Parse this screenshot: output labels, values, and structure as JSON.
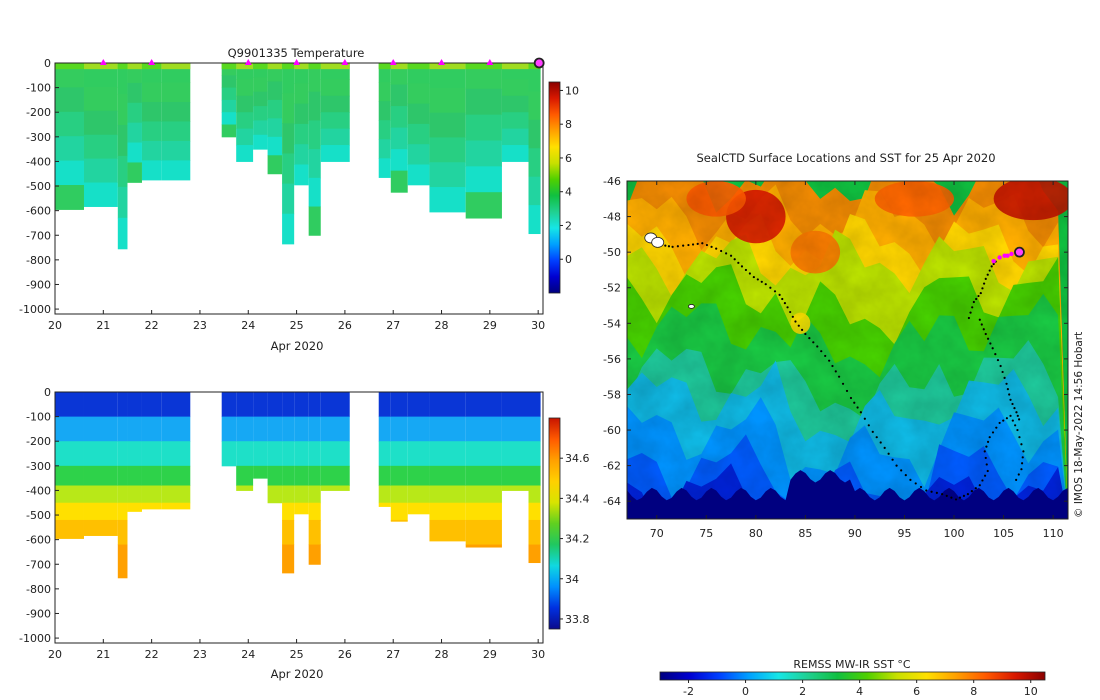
{
  "figure": {
    "credit": "© IMOS 18-May-2022 14:56 Hobart"
  },
  "colors": {
    "jet": [
      "#00007f",
      "#0000d0",
      "#0040ff",
      "#00a0ff",
      "#16e6e6",
      "#20d090",
      "#10c040",
      "#50d000",
      "#c8e000",
      "#ffe000",
      "#ffa000",
      "#ff5a00",
      "#d81800",
      "#8a0000"
    ],
    "temp_profile": [
      "#30cc60",
      "#34cc5e",
      "#2ec66a",
      "#28cf82",
      "#22d4a0",
      "#16e0c8"
    ],
    "salinity_bands": [
      {
        "to": 100,
        "color": "#0a36d6"
      },
      {
        "to": 200,
        "color": "#16a8f4"
      },
      {
        "to": 300,
        "color": "#1ee0c8"
      },
      {
        "to": 380,
        "color": "#2ed24a"
      },
      {
        "to": 450,
        "color": "#b8e818"
      },
      {
        "to": 520,
        "color": "#ffe000"
      },
      {
        "to": 620,
        "color": "#ffc000"
      },
      {
        "to": 760,
        "color": "#ffa000"
      }
    ],
    "marker": "#ff00ff",
    "marker_end": "#ff40ff",
    "track": "#000000",
    "land_mask": "#000080"
  },
  "chart_data": [
    {
      "type": "heatmap",
      "id": "temperature-section",
      "title": "Q9901335  Temperature",
      "xlabel": "Apr 2020",
      "ylabel": "",
      "xlim": [
        20,
        30.1
      ],
      "ylim": [
        -1020,
        0
      ],
      "xticks": [
        20,
        21,
        22,
        23,
        24,
        25,
        26,
        27,
        28,
        29,
        30
      ],
      "yticks": [
        0,
        -100,
        -200,
        -300,
        -400,
        -500,
        -600,
        -700,
        -800,
        -900,
        -1000
      ],
      "profiles": [
        {
          "x": 20.0,
          "depth": 595
        },
        {
          "x": 20.6,
          "depth": 583
        },
        {
          "x": 21.3,
          "depth": 755
        },
        {
          "x": 21.5,
          "depth": 485
        },
        {
          "x": 21.8,
          "depth": 475
        },
        {
          "x": 22.2,
          "depth": 475
        },
        {
          "x": 23.45,
          "depth": 300
        },
        {
          "x": 23.75,
          "depth": 400
        },
        {
          "x": 24.1,
          "depth": 350
        },
        {
          "x": 24.4,
          "depth": 450
        },
        {
          "x": 24.7,
          "depth": 735
        },
        {
          "x": 24.95,
          "depth": 495
        },
        {
          "x": 25.25,
          "depth": 700
        },
        {
          "x": 25.5,
          "depth": 400
        },
        {
          "x": 26.7,
          "depth": 465
        },
        {
          "x": 26.95,
          "depth": 525
        },
        {
          "x": 27.3,
          "depth": 495
        },
        {
          "x": 27.75,
          "depth": 605
        },
        {
          "x": 28.5,
          "depth": 630
        },
        {
          "x": 29.25,
          "depth": 400
        },
        {
          "x": 29.8,
          "depth": 693
        }
      ],
      "profiles_end": 30.05,
      "surface_markers": [
        21,
        22,
        24,
        25,
        26,
        27,
        28,
        29
      ],
      "current_marker": 30,
      "colorbar": {
        "min": -2,
        "max": 10.5,
        "ticks": [
          10,
          8,
          6,
          4,
          2,
          0
        ]
      }
    },
    {
      "type": "heatmap",
      "id": "salinity-section",
      "title": "",
      "xlabel": "Apr 2020",
      "ylabel": "",
      "xlim": [
        20,
        30.1
      ],
      "ylim": [
        -1020,
        0
      ],
      "xticks": [
        20,
        21,
        22,
        23,
        24,
        25,
        26,
        27,
        28,
        29,
        30
      ],
      "yticks": [
        0,
        -100,
        -200,
        -300,
        -400,
        -500,
        -600,
        -700,
        -800,
        -900,
        -1000
      ],
      "colorbar": {
        "min": 33.75,
        "max": 34.8,
        "ticks": [
          34.6,
          34.4,
          34.2,
          34,
          33.8
        ],
        "tick_labels": [
          "34.6",
          "34.4",
          "34.2",
          "34",
          "33.8"
        ]
      }
    },
    {
      "type": "heatmap",
      "id": "sst-map",
      "title": "SealCTD Surface Locations and SST for 25 Apr 2020",
      "xlabel": "",
      "ylabel": "",
      "xlim": [
        67,
        111.5
      ],
      "ylim": [
        -65,
        -46
      ],
      "xticks": [
        70,
        75,
        80,
        85,
        90,
        95,
        100,
        105,
        110
      ],
      "yticks": [
        -46,
        -48,
        -50,
        -52,
        -54,
        -56,
        -58,
        -60,
        -62,
        -64
      ],
      "track": [
        [
          69.6,
          -49.5
        ],
        [
          70.5,
          -49.6
        ],
        [
          71.6,
          -49.7
        ],
        [
          73.2,
          -49.6
        ],
        [
          74.6,
          -49.5
        ],
        [
          76.0,
          -49.8
        ],
        [
          77.5,
          -50.2
        ],
        [
          78.6,
          -50.8
        ],
        [
          79.8,
          -51.4
        ],
        [
          81.0,
          -51.8
        ],
        [
          82.4,
          -52.4
        ],
        [
          83.2,
          -53.1
        ],
        [
          84.0,
          -53.9
        ],
        [
          85.0,
          -54.6
        ],
        [
          86.2,
          -55.3
        ],
        [
          87.4,
          -56.1
        ],
        [
          88.4,
          -57.0
        ],
        [
          89.6,
          -58.2
        ],
        [
          90.6,
          -59.0
        ],
        [
          91.8,
          -60.1
        ],
        [
          93.0,
          -61.0
        ],
        [
          94.2,
          -62.0
        ],
        [
          95.6,
          -62.8
        ],
        [
          97.2,
          -63.4
        ],
        [
          98.8,
          -63.6
        ],
        [
          100.2,
          -63.9
        ],
        [
          101.4,
          -63.6
        ],
        [
          102.6,
          -63.1
        ],
        [
          103.4,
          -62.3
        ],
        [
          103.1,
          -61.2
        ],
        [
          103.6,
          -60.4
        ],
        [
          104.6,
          -59.6
        ],
        [
          105.7,
          -59.2
        ],
        [
          106.4,
          -60.0
        ],
        [
          107.0,
          -61.2
        ],
        [
          106.8,
          -62.2
        ],
        [
          106.0,
          -63.1
        ]
      ],
      "track2": [
        [
          102.6,
          -53.8
        ],
        [
          103.2,
          -54.6
        ],
        [
          103.9,
          -55.4
        ],
        [
          104.7,
          -56.4
        ],
        [
          105.3,
          -57.4
        ],
        [
          105.7,
          -58.3
        ],
        [
          106.3,
          -59.0
        ],
        [
          106.7,
          -59.6
        ]
      ],
      "track3": [
        [
          101.5,
          -53.7
        ],
        [
          102.0,
          -52.8
        ],
        [
          102.7,
          -52.3
        ],
        [
          103.2,
          -51.5
        ],
        [
          103.8,
          -50.8
        ],
        [
          104.4,
          -50.4
        ]
      ],
      "recent_positions": [
        [
          104.0,
          -50.5
        ],
        [
          104.6,
          -50.3
        ],
        [
          105.1,
          -50.2
        ],
        [
          105.4,
          -50.2
        ],
        [
          105.8,
          -50.1
        ]
      ],
      "current_position": [
        106.6,
        -50.0
      ],
      "islands": [
        [
          69.4,
          -49.2
        ],
        [
          70.1,
          -49.45
        ],
        [
          73.5,
          -53.05
        ]
      ],
      "colorbar": {
        "label": "REMSS MW-IR SST °C",
        "min": -3,
        "max": 10.5,
        "ticks": [
          -2,
          0,
          2,
          4,
          6,
          8,
          10
        ],
        "tick_labels": [
          "-2",
          "0",
          "2",
          "4",
          "6",
          "8",
          "10"
        ]
      }
    }
  ]
}
